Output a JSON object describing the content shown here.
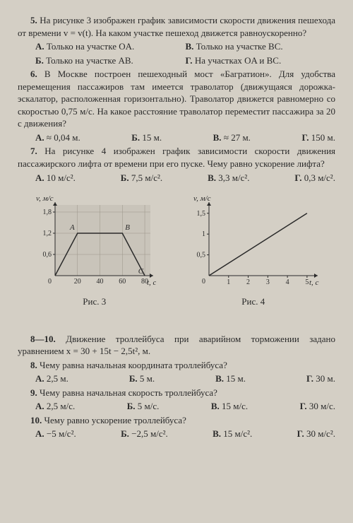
{
  "q5": {
    "text": "На рисунке 3 изображен график зависимости скорости движения пешехода от времени v = v(t). На каком участке пешеход движется равноускоренно?",
    "a": "Только на участке OA.",
    "b": "Только на участке BC.",
    "bb": "Только на участке AB.",
    "g": "На участках OA и BC."
  },
  "q6": {
    "text": "В Москве построен пешеходный мост «Багратион». Для удобства перемещения пассажиров там имеется траволатор (движущаяся дорожка-эскалатор, расположенная горизонтально). Траволатор движется равномерно со скоростью 0,75 м/с. На какое расстояние траволатор переместит пассажира за 20 с движения?",
    "a": "≈ 0,04 м.",
    "b": "15 м.",
    "v": "≈ 27 м.",
    "g": "150 м."
  },
  "q7": {
    "text": "На рисунке 4 изображен график зависимости скорости движения пассажирского лифта от времени при его пуске. Чему равно ускорение лифта?",
    "a": "10 м/с².",
    "b": "7,5 м/с².",
    "v": "3,3 м/с².",
    "g": "0,3 м/с²."
  },
  "chart3": {
    "type": "line",
    "ylabel": "v, м/с",
    "xlabel": "t, с",
    "caption": "Рис. 3",
    "xticks": [
      0,
      20,
      40,
      60,
      80
    ],
    "yticks": [
      0.6,
      1.2,
      1.8
    ],
    "yticklabels": [
      "0,6",
      "1,2",
      "1,8"
    ],
    "points": [
      [
        0,
        0
      ],
      [
        20,
        1.2
      ],
      [
        60,
        1.2
      ],
      [
        80,
        0
      ]
    ],
    "point_labels": {
      "A": [
        20,
        1.2
      ],
      "B": [
        60,
        1.2
      ],
      "C": [
        80,
        0
      ]
    },
    "xlim": [
      0,
      85
    ],
    "ylim": [
      0,
      2.0
    ],
    "bg_color": "#c9c4ba",
    "grid_color": "#9a9488",
    "line_color": "#2a2a2a",
    "axis_color": "#2a2a2a",
    "line_width": 1.5
  },
  "chart4": {
    "type": "line",
    "ylabel": "v, м/с",
    "xlabel": "t, с",
    "caption": "Рис. 4",
    "xticks": [
      0,
      1,
      2,
      3,
      4,
      5
    ],
    "yticks": [
      0.5,
      1,
      1.5
    ],
    "yticklabels": [
      "0,5",
      "1",
      "1,5"
    ],
    "points": [
      [
        0,
        0
      ],
      [
        5,
        1.5
      ]
    ],
    "xlim": [
      0,
      5.4
    ],
    "ylim": [
      0,
      1.7
    ],
    "bg_color": "#d4cfc5",
    "line_color": "#2a2a2a",
    "axis_color": "#2a2a2a",
    "line_width": 1.5
  },
  "q8_10": {
    "intro": "Движение троллейбуса при аварийном торможении задано уравнением x = 30 + 15t − 2,5t², м."
  },
  "q8": {
    "text": "Чему равна начальная координата троллейбуса?",
    "a": "2,5 м.",
    "b": "5 м.",
    "v": "15 м.",
    "g": "30 м."
  },
  "q9": {
    "text": "Чему равна начальная скорость троллейбуса?",
    "a": "2,5 м/с.",
    "b": "5 м/с.",
    "v": "15 м/с.",
    "g": "30 м/с."
  },
  "q10": {
    "text": "Чему равно ускорение троллейбуса?",
    "a": "−5 м/с².",
    "b": "−2,5 м/с².",
    "v": "15 м/с².",
    "g": "30 м/с²."
  }
}
